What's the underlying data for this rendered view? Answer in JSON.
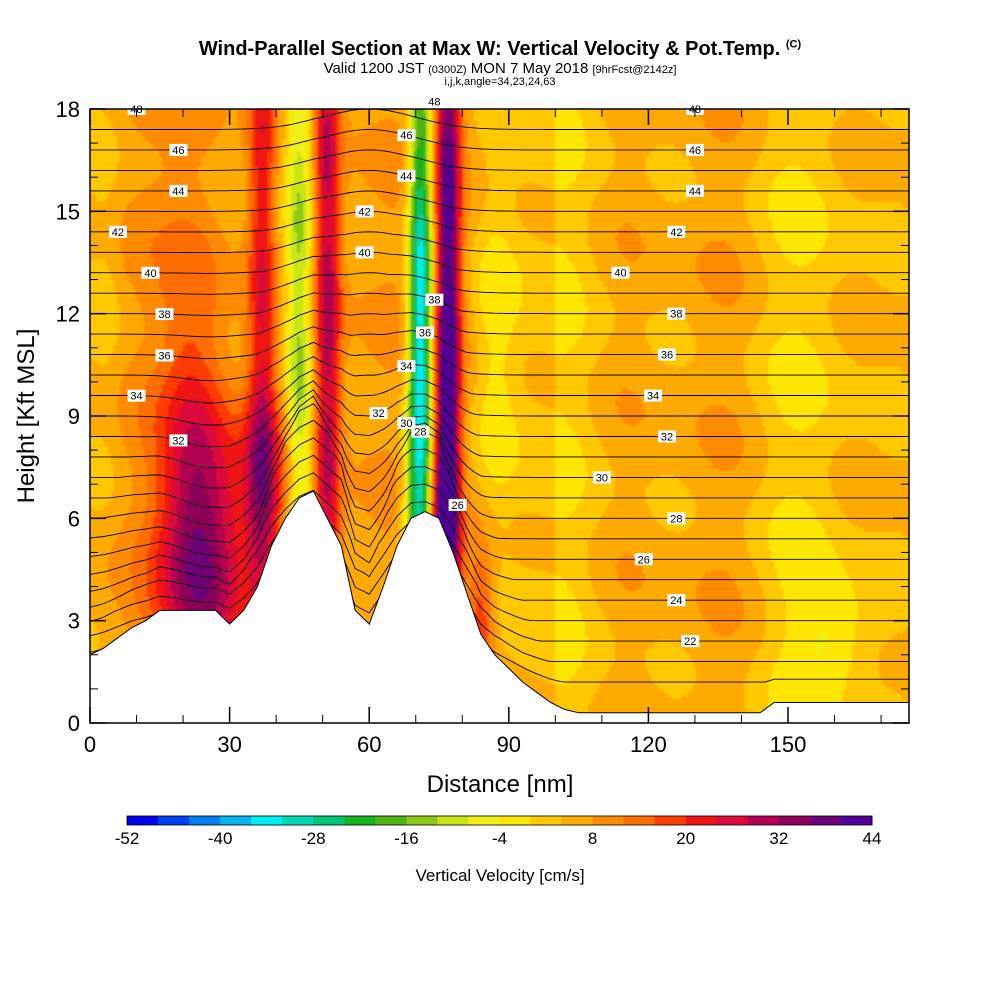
{
  "chart_data": {
    "type": "heatmap",
    "title": "Wind-Parallel Section at Max W: Vertical Velocity & Pot.Temp.",
    "title_suffix": "(C)",
    "subtitle": {
      "valid": "Valid 1200 JST",
      "utc": "(0300Z)",
      "date": "MON 7 May 2018",
      "forecast": "[9hrFcst@2142z]"
    },
    "subtitle2": "i,j,k,angle=34,23,24,63",
    "xlabel": "Distance [nm]",
    "ylabel": "Height [Kft MSL]",
    "xlim": [
      0,
      176
    ],
    "ylim": [
      0,
      18
    ],
    "x_ticks": [
      "0",
      "30",
      "60",
      "90",
      "120",
      "150"
    ],
    "y_ticks": [
      "0",
      "3",
      "6",
      "9",
      "12",
      "15",
      "18"
    ],
    "x_tick_values": [
      0,
      30,
      60,
      90,
      120,
      150
    ],
    "y_tick_values": [
      0,
      3,
      6,
      9,
      12,
      15,
      18
    ],
    "colorbar": {
      "label": "Vertical Velocity [cm/s]",
      "min": -52,
      "max": 44,
      "step": 4,
      "tick_labels": [
        "-52",
        "-40",
        "-28",
        "-16",
        "-4",
        "8",
        "20",
        "32",
        "44"
      ],
      "colors": [
        "#0000f0",
        "#0040f0",
        "#0080f0",
        "#00b4f0",
        "#00f0f0",
        "#00d8b4",
        "#00c878",
        "#14b41e",
        "#50b414",
        "#8cc814",
        "#c8e614",
        "#f0f014",
        "#ffe600",
        "#ffc800",
        "#ffaa00",
        "#ff8c00",
        "#ff6e00",
        "#ff3c00",
        "#f01414",
        "#dc0a3c",
        "#b40050",
        "#8c005a",
        "#6e0078",
        "#500096"
      ]
    },
    "updraft_bands": [
      {
        "x": 25,
        "y": 4.8,
        "sx": 7,
        "sy": 2.8,
        "w": 24
      },
      {
        "x": 22,
        "y": 8.5,
        "sx": 5,
        "sy": 4.5,
        "w": 10
      },
      {
        "x": 38,
        "y": 7.0,
        "sx": 4,
        "sy": 2.0,
        "w": 16
      },
      {
        "x": 37,
        "y": 14,
        "sx": 2.2,
        "sy": 9,
        "w": 20
      },
      {
        "x": 51,
        "y": 12,
        "sx": 2.0,
        "sy": 11,
        "w": 26
      },
      {
        "x": 77,
        "y": 12,
        "sx": 1.8,
        "sy": 10,
        "w": 36
      },
      {
        "x": 76,
        "y": 5,
        "sx": 2.0,
        "sy": 3,
        "w": 20
      },
      {
        "x": 84,
        "y": 3,
        "sx": 2.0,
        "sy": 1.5,
        "w": 14
      }
    ],
    "downdraft_bands": [
      {
        "x": 45,
        "y": 11,
        "sx": 2.0,
        "sy": 9,
        "w": -16
      },
      {
        "x": 71,
        "y": 11,
        "sx": 1.8,
        "sy": 7,
        "w": -44
      },
      {
        "x": 69,
        "y": 4.5,
        "sx": 2.0,
        "sy": 2.5,
        "w": -12
      },
      {
        "x": 87,
        "y": 11,
        "sx": 3.5,
        "sy": 4,
        "w": -8
      },
      {
        "x": 160,
        "y": 2.5,
        "sx": 6,
        "sy": 1.2,
        "w": -8
      },
      {
        "x": 3,
        "y": 13,
        "sx": 3,
        "sy": 6,
        "w": -4
      }
    ],
    "terrain": [
      [
        0,
        2.0
      ],
      [
        3,
        2.2
      ],
      [
        6,
        2.5
      ],
      [
        9,
        2.8
      ],
      [
        12,
        3.0
      ],
      [
        15,
        3.3
      ],
      [
        18,
        3.3
      ],
      [
        21,
        3.3
      ],
      [
        24,
        3.3
      ],
      [
        27,
        3.3
      ],
      [
        30,
        2.9
      ],
      [
        33,
        3.3
      ],
      [
        36,
        4.0
      ],
      [
        39,
        5.2
      ],
      [
        42,
        6.0
      ],
      [
        45,
        6.6
      ],
      [
        48,
        6.8
      ],
      [
        51,
        6.0
      ],
      [
        54,
        5.2
      ],
      [
        57,
        3.3
      ],
      [
        60,
        2.9
      ],
      [
        63,
        4.0
      ],
      [
        66,
        5.2
      ],
      [
        69,
        6.0
      ],
      [
        72,
        6.2
      ],
      [
        75,
        6.0
      ],
      [
        78,
        5.0
      ],
      [
        81,
        3.8
      ],
      [
        84,
        2.6
      ],
      [
        87,
        2.0
      ],
      [
        90,
        1.6
      ],
      [
        93,
        1.2
      ],
      [
        96,
        0.9
      ],
      [
        99,
        0.6
      ],
      [
        102,
        0.4
      ],
      [
        105,
        0.3
      ],
      [
        120,
        0.3
      ],
      [
        135,
        0.3
      ],
      [
        144,
        0.3
      ],
      [
        147,
        0.6
      ],
      [
        150,
        0.6
      ],
      [
        165,
        0.6
      ],
      [
        176,
        0.6
      ]
    ],
    "isentropes": {
      "start": 20,
      "step": 1,
      "count": 29,
      "labels": [
        {
          "x": 10,
          "v": "48"
        },
        {
          "x": 19,
          "v": "46"
        },
        {
          "x": 19,
          "v": "44"
        },
        {
          "x": 6,
          "v": "42"
        },
        {
          "x": 13,
          "v": "40"
        },
        {
          "x": 16,
          "v": "38"
        },
        {
          "x": 16,
          "v": "36"
        },
        {
          "x": 10,
          "v": "34"
        },
        {
          "x": 19,
          "v": "32"
        },
        {
          "x": 74,
          "v": "48"
        },
        {
          "x": 68,
          "v": "46"
        },
        {
          "x": 68,
          "v": "44"
        },
        {
          "x": 59,
          "v": "42"
        },
        {
          "x": 59,
          "v": "40"
        },
        {
          "x": 74,
          "v": "38"
        },
        {
          "x": 72,
          "v": "36"
        },
        {
          "x": 68,
          "v": "34"
        },
        {
          "x": 62,
          "v": "32"
        },
        {
          "x": 68,
          "v": "30"
        },
        {
          "x": 71,
          "v": "28"
        },
        {
          "x": 79,
          "v": "26"
        },
        {
          "x": 130,
          "v": "48"
        },
        {
          "x": 130,
          "v": "46"
        },
        {
          "x": 130,
          "v": "44"
        },
        {
          "x": 126,
          "v": "42"
        },
        {
          "x": 114,
          "v": "40"
        },
        {
          "x": 126,
          "v": "38"
        },
        {
          "x": 124,
          "v": "36"
        },
        {
          "x": 121,
          "v": "34"
        },
        {
          "x": 124,
          "v": "32"
        },
        {
          "x": 110,
          "v": "30"
        },
        {
          "x": 126,
          "v": "28"
        },
        {
          "x": 119,
          "v": "26"
        },
        {
          "x": 126,
          "v": "24"
        },
        {
          "x": 129,
          "v": "22"
        }
      ]
    },
    "grid": false,
    "legend": "bottom"
  }
}
